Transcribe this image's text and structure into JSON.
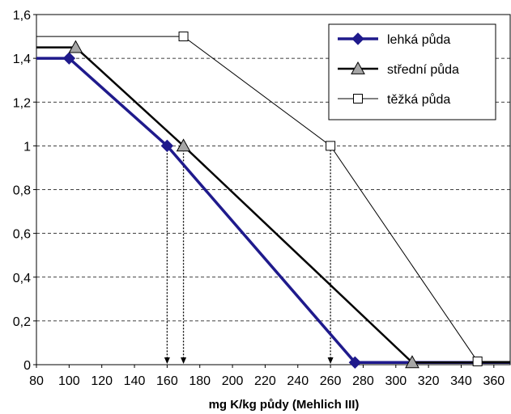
{
  "chart_data": {
    "type": "line",
    "title": "",
    "xlabel": "mg K/kg půdy (Mehlich III)",
    "ylabel": "",
    "xlim": [
      80,
      370
    ],
    "ylim": [
      0,
      1.6
    ],
    "x_ticks": [
      80,
      100,
      120,
      140,
      160,
      180,
      200,
      220,
      240,
      260,
      280,
      300,
      320,
      340,
      360
    ],
    "y_ticks": [
      0,
      0.2,
      0.4,
      0.6,
      0.8,
      1,
      1.2,
      1.4,
      1.6
    ],
    "y_tick_labels": [
      "0",
      "0,2",
      "0,4",
      "0,6",
      "0,8",
      "1",
      "1,2",
      "1,4",
      "1,6"
    ],
    "grid": "horizontal dashed",
    "legend_position": "top-right",
    "series": [
      {
        "name": "lehká půda",
        "color": "#1f1a8c",
        "marker": "diamond",
        "points": [
          [
            80,
            1.4
          ],
          [
            100,
            1.4
          ],
          [
            160,
            1.0
          ],
          [
            275,
            0.01
          ],
          [
            370,
            0.01
          ]
        ]
      },
      {
        "name": "střední půda",
        "color": "#000000",
        "marker": "triangle",
        "points": [
          [
            80,
            1.45
          ],
          [
            104,
            1.45
          ],
          [
            170,
            1.0
          ],
          [
            310,
            0.01
          ],
          [
            370,
            0.01
          ]
        ]
      },
      {
        "name": "těžká půda",
        "color": "#000000",
        "marker": "square",
        "points": [
          [
            80,
            1.5
          ],
          [
            170,
            1.5
          ],
          [
            260,
            1.0
          ],
          [
            350,
            0.015
          ],
          [
            370,
            0.015
          ]
        ]
      }
    ],
    "reference_arrows": [
      {
        "x": 160,
        "y": 1.0
      },
      {
        "x": 170,
        "y": 1.0
      },
      {
        "x": 260,
        "y": 1.0
      }
    ]
  }
}
